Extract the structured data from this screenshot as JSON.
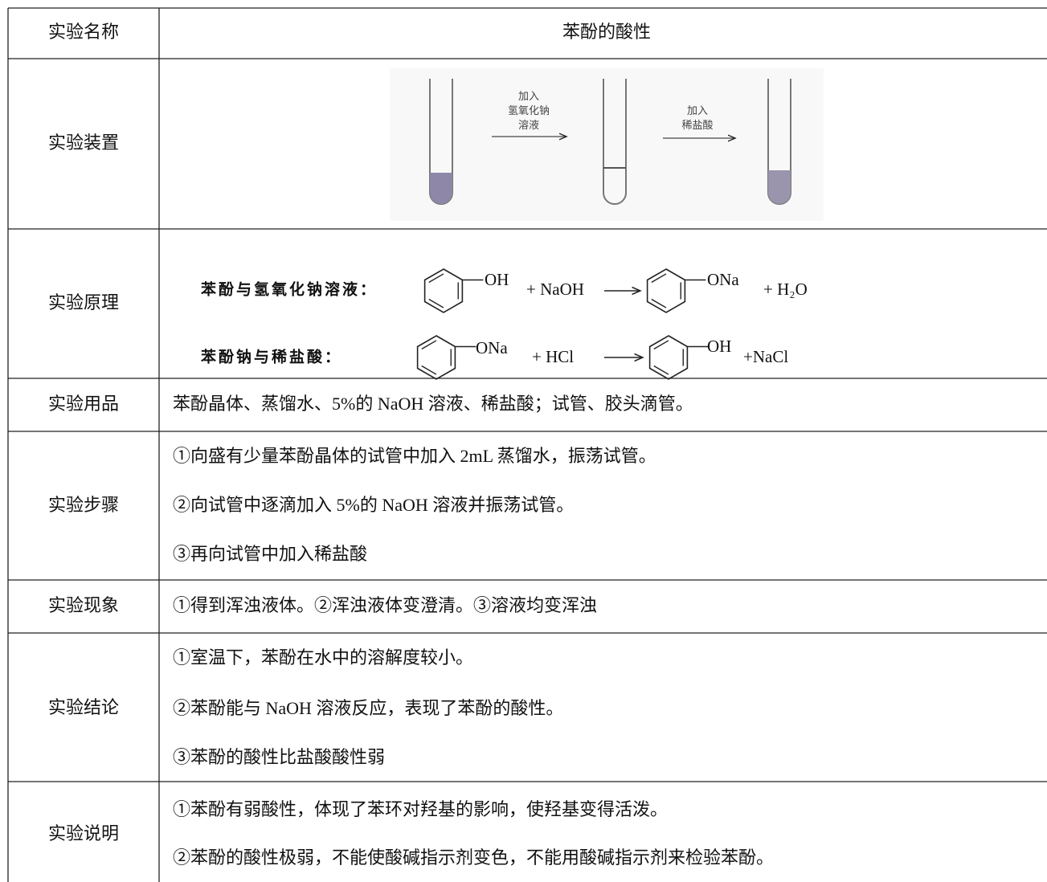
{
  "table": {
    "rows": [
      {
        "label": "实验名称",
        "lines": [
          "苯酚的酸性"
        ]
      },
      {
        "label": "实验装置",
        "steps": [
          [
            "加入",
            "氢氧化钠",
            "溶液"
          ],
          [
            "加入",
            "稀盐酸"
          ]
        ]
      },
      {
        "label": "实验原理",
        "equations": [
          {
            "name": "苯酚与氢氧化钠溶液：",
            "reactant_group": "OH",
            "reagent": "+ NaOH",
            "product_group": "ONa",
            "byproduct": "+ H₂O"
          },
          {
            "name": "苯酚钠与稀盐酸：",
            "reactant_group": "ONa",
            "reagent": "+ HCl",
            "product_group": "OH",
            "byproduct": "+NaCl"
          }
        ]
      },
      {
        "label": "实验用品",
        "lines": [
          "苯酚晶体、蒸馏水、5%的 NaOH 溶液、稀盐酸；试管、胶头滴管。"
        ]
      },
      {
        "label": "实验步骤",
        "lines": [
          "①向盛有少量苯酚晶体的试管中加入 2mL 蒸馏水，振荡试管。",
          "②向试管中逐滴加入 5%的 NaOH 溶液并振荡试管。",
          "③再向试管中加入稀盐酸"
        ]
      },
      {
        "label": "实验现象",
        "lines": [
          "①得到浑浊液体。②浑浊液体变澄清。③溶液均变浑浊"
        ]
      },
      {
        "label": "实验结论",
        "lines": [
          "①室温下，苯酚在水中的溶解度较小。",
          "②苯酚能与 NaOH 溶液反应，表现了苯酚的酸性。",
          "③苯酚的酸性比盐酸酸性弱"
        ]
      },
      {
        "label": "实验说明",
        "lines": [
          "①苯酚有弱酸性，体现了苯环对羟基的影响，使羟基变得活泼。",
          "②苯酚的酸性极弱，不能使酸碱指示剂变色，不能用酸碱指示剂来检验苯酚。"
        ]
      }
    ]
  }
}
